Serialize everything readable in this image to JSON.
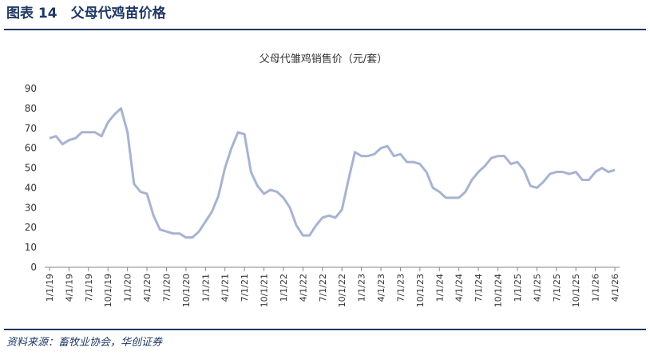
{
  "header": {
    "title": "图表 14　父母代鸡苗价格"
  },
  "chart_data": {
    "type": "line",
    "title": "父母代雏鸡销售价（元/套）",
    "categories": [
      "1/1/19",
      null,
      null,
      "4/1/19",
      null,
      null,
      "7/1/19",
      null,
      null,
      "10/1/19",
      null,
      null,
      "1/1/20",
      null,
      null,
      "4/1/20",
      null,
      null,
      "7/1/20",
      null,
      null,
      "10/1/20",
      null,
      null,
      "1/1/21",
      null,
      null,
      "4/1/21",
      null,
      null,
      "7/1/21",
      null,
      null,
      "10/1/21",
      null,
      null,
      "1/1/22",
      null,
      null,
      "4/1/22",
      null,
      null,
      "7/1/22",
      null,
      null,
      "10/1/22",
      null,
      null,
      "1/1/23",
      null,
      null,
      "4/1/23",
      null,
      null,
      "7/1/23",
      null,
      null,
      "10/1/23",
      null,
      null,
      "1/1/24",
      null,
      null,
      "4/1/24",
      null,
      null,
      "7/1/24",
      null,
      null,
      "10/1/24",
      null,
      null,
      "1/1/25",
      null,
      null,
      "4/1/25",
      null,
      null,
      "7/1/25",
      null,
      null,
      "10/1/25",
      null,
      null,
      "1/1/26",
      null,
      null,
      "4/1/26"
    ],
    "series": [
      {
        "color": "#a7b3d1",
        "values": [
          65,
          66,
          62,
          64,
          65,
          68,
          68,
          68,
          66,
          73,
          77,
          80,
          68,
          42,
          38,
          37,
          26,
          19,
          18,
          17,
          17,
          15,
          15,
          18,
          23,
          28,
          36,
          50,
          60,
          68,
          67,
          48,
          41,
          37,
          39,
          38,
          35,
          30,
          21,
          16,
          16,
          21,
          25,
          26,
          25,
          29,
          44,
          58,
          56,
          56,
          57,
          60,
          61,
          56,
          57,
          53,
          53,
          52,
          48,
          40,
          38,
          35,
          35,
          35,
          38,
          44,
          48,
          51,
          55,
          56,
          56,
          52,
          53,
          49,
          41,
          40,
          43,
          47,
          48,
          48,
          47,
          48,
          44,
          44,
          48,
          50,
          48,
          49
        ]
      }
    ],
    "ylim": [
      0,
      90
    ],
    "yticks": [
      0,
      10,
      20,
      30,
      40,
      50,
      60,
      70,
      80,
      90
    ]
  },
  "source": "资料来源：畜牧业协会，华创证券"
}
